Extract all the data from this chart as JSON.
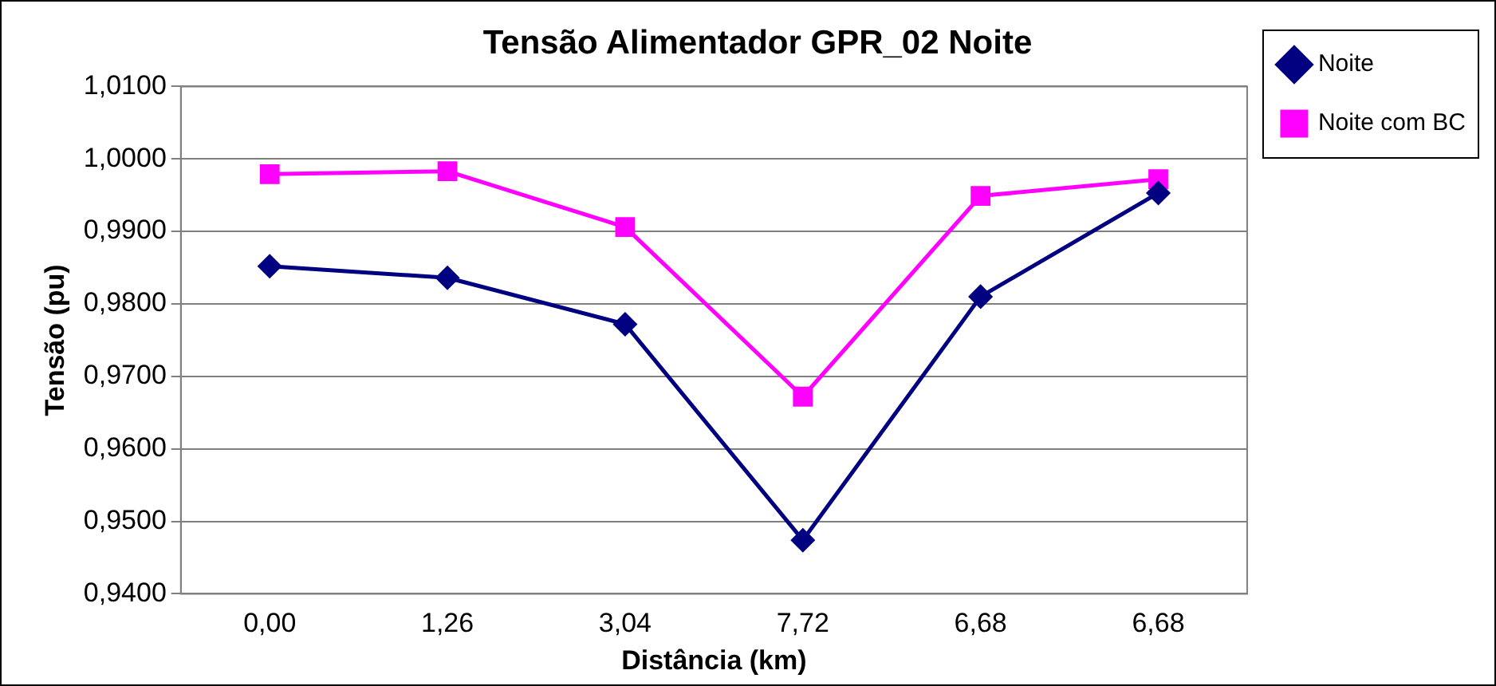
{
  "chart_data": {
    "type": "line",
    "title": "Tensão Alimentador GPR_02 Noite",
    "xlabel": "Distância (km)",
    "ylabel": "Tensão (pu)",
    "categories": [
      "0,00",
      "1,26",
      "3,04",
      "7,72",
      "6,68",
      "6,68"
    ],
    "series": [
      {
        "name": "Noite",
        "color": "#000080",
        "marker": "diamond",
        "values": [
          0.9852,
          0.9836,
          0.9772,
          0.9474,
          0.981,
          0.9953
        ]
      },
      {
        "name": "Noite com BC",
        "color": "#ff00ff",
        "marker": "square",
        "values": [
          0.9979,
          0.9983,
          0.9906,
          0.9672,
          0.9949,
          0.9972
        ]
      }
    ],
    "ylim": [
      0.94,
      1.01
    ],
    "yticks": [
      {
        "value": 0.94,
        "label": "0,9400"
      },
      {
        "value": 0.95,
        "label": "0,9500"
      },
      {
        "value": 0.96,
        "label": "0,9600"
      },
      {
        "value": 0.97,
        "label": "0,9700"
      },
      {
        "value": 0.98,
        "label": "0,9800"
      },
      {
        "value": 0.99,
        "label": "0,9900"
      },
      {
        "value": 1.0,
        "label": "1,0000"
      },
      {
        "value": 1.01,
        "label": "1,0100"
      }
    ],
    "grid": "y",
    "legend": "right",
    "line_style": "solid"
  }
}
